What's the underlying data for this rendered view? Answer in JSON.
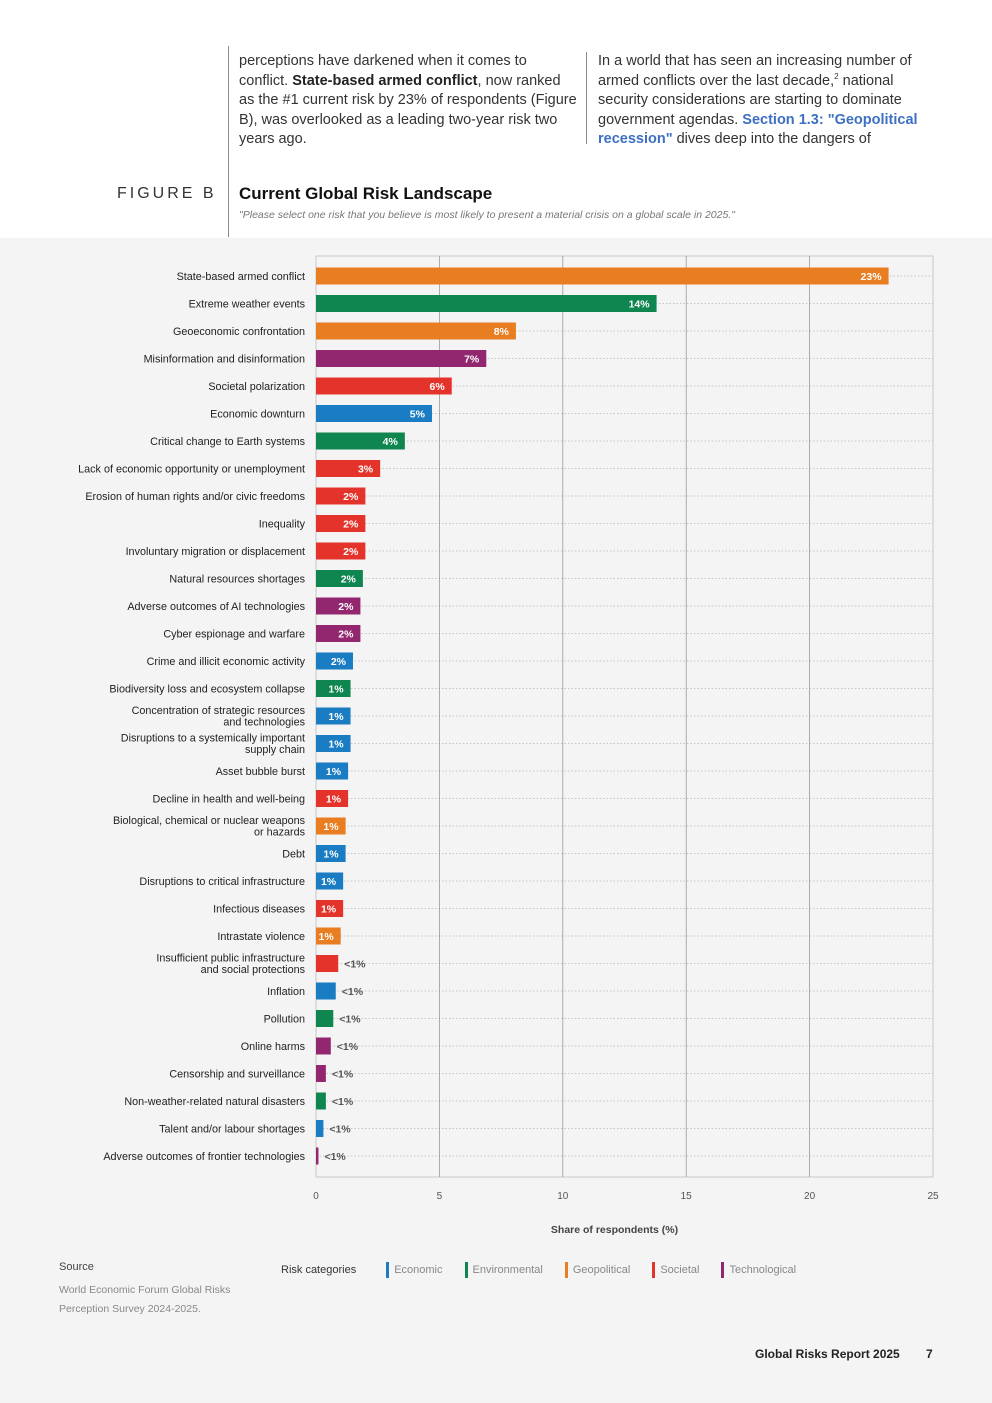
{
  "intro": {
    "left_parts": [
      {
        "text": "perceptions have darkened when it comes to conflict. ",
        "bold": false
      },
      {
        "text": "State-based armed conflict",
        "bold": true
      },
      {
        "text": ", now ranked as the #1 current risk by 23% of respondents (Figure B), was overlooked as a leading two-year risk two years ago.",
        "bold": false
      }
    ],
    "right_before": "In a world that has seen an increasing number of armed conflicts over the last decade,",
    "right_sup": "2",
    "right_middle": " national security considerations are starting to dominate government agendas. ",
    "right_link": "Section 1.3: \"Geopolitical recession\"",
    "right_after": " dives deep into the dangers of"
  },
  "figure": {
    "label": "FIGURE B",
    "title": "Current Global Risk Landscape",
    "subtitle": "\"Please select one risk that you believe is most likely to present a material crisis on a global scale in 2025.\""
  },
  "colors": {
    "Economic": "#1a7cc2",
    "Environmental": "#0f8650",
    "Geopolitical": "#e87d22",
    "Societal": "#e4332b",
    "Technological": "#93276f"
  },
  "chart_data": {
    "type": "bar",
    "orientation": "horizontal",
    "xlabel": "Share of respondents (%)",
    "xlim": [
      0,
      25
    ],
    "xticks": [
      0,
      5,
      10,
      15,
      20,
      25
    ],
    "grid": true,
    "categories": [
      "State-based armed conflict",
      "Extreme weather events",
      "Geoeconomic confrontation",
      "Misinformation and disinformation",
      "Societal polarization",
      "Economic downturn",
      "Critical change to Earth systems",
      "Lack of economic opportunity or unemployment",
      "Erosion of human rights and/or civic freedoms",
      "Inequality",
      "Involuntary migration or displacement",
      "Natural resources shortages",
      "Adverse outcomes of AI technologies",
      "Cyber espionage and warfare",
      "Crime and illicit economic activity",
      "Biodiversity loss and ecosystem collapse",
      "Concentration of strategic resources and technologies",
      "Disruptions to a systemically important supply chain",
      "Asset bubble burst",
      "Decline in health and well-being",
      "Biological, chemical or nuclear weapons or hazards",
      "Debt",
      "Disruptions to critical infrastructure",
      "Infectious diseases",
      "Intrastate violence",
      "Insufficient public infrastructure and social protections",
      "Inflation",
      "Pollution",
      "Online harms",
      "Censorship and surveillance",
      "Non-weather-related natural disasters",
      "Talent and/or labour shortages",
      "Adverse outcomes of frontier technologies"
    ],
    "label_lines": [
      [
        "State-based armed conflict"
      ],
      [
        "Extreme weather events"
      ],
      [
        "Geoeconomic confrontation"
      ],
      [
        "Misinformation and disinformation"
      ],
      [
        "Societal polarization"
      ],
      [
        "Economic downturn"
      ],
      [
        "Critical change to Earth systems"
      ],
      [
        "Lack of economic opportunity or unemployment"
      ],
      [
        "Erosion of human rights and/or civic freedoms"
      ],
      [
        "Inequality"
      ],
      [
        "Involuntary migration or displacement"
      ],
      [
        "Natural resources shortages"
      ],
      [
        "Adverse outcomes of AI technologies"
      ],
      [
        "Cyber espionage and warfare"
      ],
      [
        "Crime and illicit economic activity"
      ],
      [
        "Biodiversity loss and ecosystem collapse"
      ],
      [
        "Concentration of strategic resources",
        "and technologies"
      ],
      [
        "Disruptions to a systemically important",
        "supply chain"
      ],
      [
        "Asset bubble burst"
      ],
      [
        "Decline in health and well-being"
      ],
      [
        "Biological, chemical or nuclear weapons",
        "or hazards"
      ],
      [
        "Debt"
      ],
      [
        "Disruptions to critical infrastructure"
      ],
      [
        "Infectious diseases"
      ],
      [
        "Intrastate violence"
      ],
      [
        "Insufficient public infrastructure",
        "and social protections"
      ],
      [
        "Inflation"
      ],
      [
        "Pollution"
      ],
      [
        "Online harms"
      ],
      [
        "Censorship and surveillance"
      ],
      [
        "Non-weather-related natural disasters"
      ],
      [
        "Talent and/or labour shortages"
      ],
      [
        "Adverse outcomes of frontier technologies"
      ]
    ],
    "values": [
      23.2,
      13.8,
      8.1,
      6.9,
      5.5,
      4.7,
      3.6,
      2.6,
      2.0,
      2.0,
      2.0,
      1.9,
      1.8,
      1.8,
      1.5,
      1.4,
      1.4,
      1.4,
      1.3,
      1.3,
      1.2,
      1.2,
      1.1,
      1.1,
      1.0,
      0.9,
      0.8,
      0.7,
      0.6,
      0.4,
      0.4,
      0.3,
      0.1
    ],
    "value_labels": [
      "23%",
      "14%",
      "8%",
      "7%",
      "6%",
      "5%",
      "4%",
      "3%",
      "2%",
      "2%",
      "2%",
      "2%",
      "2%",
      "2%",
      "2%",
      "1%",
      "1%",
      "1%",
      "1%",
      "1%",
      "1%",
      "1%",
      "1%",
      "1%",
      "1%",
      "<1%",
      "<1%",
      "<1%",
      "<1%",
      "<1%",
      "<1%",
      "<1%",
      "<1%"
    ],
    "risk_category": [
      "Geopolitical",
      "Environmental",
      "Geopolitical",
      "Technological",
      "Societal",
      "Economic",
      "Environmental",
      "Societal",
      "Societal",
      "Societal",
      "Societal",
      "Environmental",
      "Technological",
      "Technological",
      "Economic",
      "Environmental",
      "Economic",
      "Economic",
      "Economic",
      "Societal",
      "Geopolitical",
      "Economic",
      "Economic",
      "Societal",
      "Geopolitical",
      "Societal",
      "Economic",
      "Environmental",
      "Technological",
      "Technological",
      "Environmental",
      "Economic",
      "Technological"
    ]
  },
  "legend": {
    "title": "Risk categories",
    "items": [
      "Economic",
      "Environmental",
      "Geopolitical",
      "Societal",
      "Technological"
    ]
  },
  "source": {
    "heading": "Source",
    "text": "World Economic Forum Global Risks Perception Survey 2024-2025."
  },
  "footer": {
    "title": "Global Risks Report 2025",
    "page": "7"
  }
}
